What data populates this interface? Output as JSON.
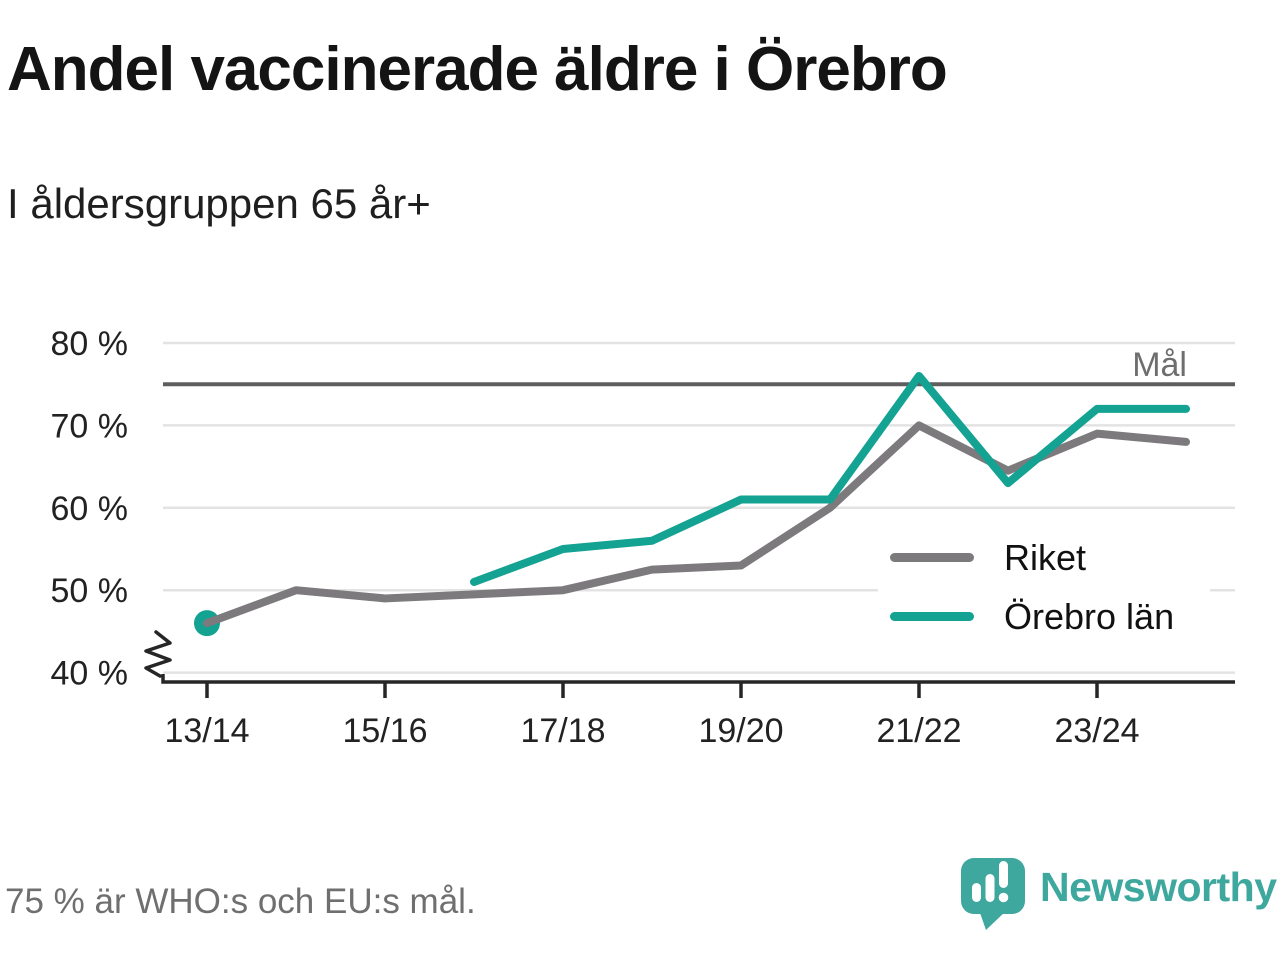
{
  "header": {
    "title": "Andel vaccinerade äldre i Örebro",
    "subtitle": "I åldersgruppen 65 år+"
  },
  "footer": {
    "note": "75 % är WHO:s och EU:s mål.",
    "brand": "Newsworthy"
  },
  "colors": {
    "riket_line": "#7d7a7d",
    "orebro_line": "#14a292",
    "goal_line": "#5e5e5e",
    "grid": "#e3e3e3",
    "axis": "#262626",
    "tick_text": "#222222",
    "goal_text": "#6e6e6e",
    "brand_teal": "#3ea79e"
  },
  "chart_data": {
    "type": "line",
    "title": "Andel vaccinerade äldre i Örebro",
    "subtitle": "I åldersgruppen 65 år+",
    "x": [
      "13/14",
      "14/15",
      "15/16",
      "16/17",
      "17/18",
      "18/19",
      "19/20",
      "20/21",
      "21/22",
      "22/23",
      "23/24",
      "24/25"
    ],
    "x_tick_labels": [
      "13/14",
      "15/16",
      "17/18",
      "19/20",
      "21/22",
      "23/24"
    ],
    "y_ticks": [
      80,
      70,
      60,
      50,
      40
    ],
    "y_tick_suffix": " %",
    "ylim": [
      40,
      80
    ],
    "axis_break": true,
    "grid": true,
    "legend_position": "inside-right",
    "goal": {
      "value": 75,
      "label": "Mål"
    },
    "series": [
      {
        "name": "Riket",
        "color": "#7d7a7d",
        "values": [
          46,
          50,
          49,
          49.5,
          50,
          52.5,
          53,
          60,
          70,
          64.5,
          69,
          68
        ]
      },
      {
        "name": "Örebro län",
        "color": "#14a292",
        "values": [
          46,
          null,
          null,
          51,
          55,
          56,
          61,
          61,
          76,
          63,
          72,
          72
        ]
      }
    ],
    "annotation": "75 % är WHO:s och EU:s mål."
  }
}
